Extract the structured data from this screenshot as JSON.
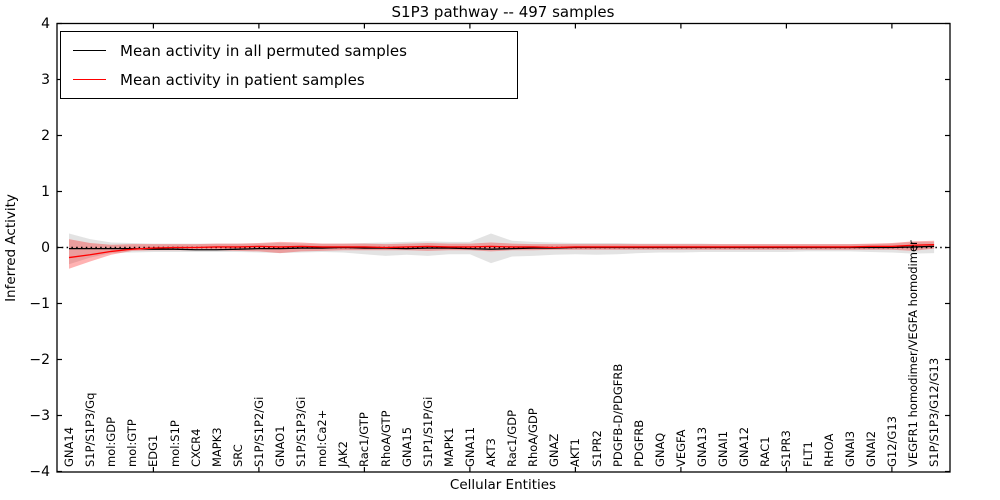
{
  "title": "S1P3 pathway -- 497 samples",
  "axes": {
    "xlabel": "Cellular Entities",
    "ylabel": "Inferred Activity"
  },
  "legend": {
    "items": [
      {
        "label": "Mean activity in all permuted samples",
        "color": "#000000"
      },
      {
        "label": "Mean activity in patient samples",
        "color": "#ff0000"
      }
    ]
  },
  "chart_data": {
    "type": "line",
    "title": "S1P3 pathway -- 497 samples",
    "xlabel": "Cellular Entities",
    "ylabel": "Inferred Activity",
    "ylim": [
      -4,
      4
    ],
    "grid": false,
    "zero_line": true,
    "legend_position": "upper left",
    "yticks": [
      4,
      3,
      2,
      1,
      0,
      -1,
      -2,
      -3,
      -4
    ],
    "ytick_labels": [
      "4",
      "3",
      "2",
      "1",
      "0",
      "−1",
      "−2",
      "−3",
      "−4"
    ],
    "x_major_tick_indices": [
      4,
      9,
      14,
      19,
      24,
      29,
      34,
      39
    ],
    "categories": [
      "GNA14",
      "S1P/S1P3/Gq",
      "mol:GDP",
      "mol:GTP",
      "EDG1",
      "mol:S1P",
      "CXCR4",
      "MAPK3",
      "SRC",
      "S1P/S1P2/Gi",
      "GNAO1",
      "S1P/S1P3/Gi",
      "mol:Ca2+",
      "JAK2",
      "Rac1/GTP",
      "RhoA/GTP",
      "GNA15",
      "S1P1/S1P/Gi",
      "MAPK1",
      "GNA11",
      "AKT3",
      "Rac1/GDP",
      "RhoA/GDP",
      "GNAZ",
      "AKT1",
      "S1PR2",
      "PDGFB-D/PDGFRB",
      "PDGFRB",
      "GNAQ",
      "VEGFA",
      "GNA13",
      "GNAI1",
      "GNA12",
      "RAC1",
      "S1PR3",
      "FLT1",
      "RHOA",
      "GNAI3",
      "GNAI2",
      "G12/G13",
      "VEGFR1 homodimer/VEGFA homodimer",
      "S1P/S1P3/G12/G13"
    ],
    "series": [
      {
        "name": "Mean activity in all permuted samples",
        "color": "#000000",
        "line_width": 1.3,
        "band_color": "#b0b0b0",
        "band_opacity": 0.35,
        "values": [
          -0.02,
          -0.02,
          -0.02,
          -0.02,
          -0.03,
          -0.03,
          -0.04,
          -0.04,
          -0.03,
          -0.02,
          -0.02,
          -0.01,
          -0.01,
          0,
          -0.01,
          -0.01,
          -0.02,
          -0.01,
          -0.01,
          -0.02,
          -0.03,
          -0.02,
          -0.01,
          -0.01,
          0,
          0,
          0,
          0,
          0,
          0,
          0,
          0,
          0,
          0,
          0,
          0,
          0,
          0,
          0,
          0,
          0.01,
          0.02
        ],
        "band_hi": [
          0.25,
          0.15,
          0.09,
          0.08,
          0.07,
          0.07,
          0.07,
          0.07,
          0.07,
          0.07,
          0.08,
          0.07,
          0.07,
          0.07,
          0.08,
          0.09,
          0.1,
          0.11,
          0.1,
          0.1,
          0.25,
          0.12,
          0.1,
          0.09,
          0.08,
          0.08,
          0.08,
          0.07,
          0.07,
          0.07,
          0.07,
          0.06,
          0.06,
          0.06,
          0.06,
          0.06,
          0.06,
          0.06,
          0.06,
          0.07,
          0.1,
          0.1
        ],
        "band_lo": [
          -0.3,
          -0.18,
          -0.1,
          -0.09,
          -0.08,
          -0.08,
          -0.08,
          -0.08,
          -0.08,
          -0.09,
          -0.1,
          -0.09,
          -0.08,
          -0.09,
          -0.12,
          -0.15,
          -0.13,
          -0.15,
          -0.12,
          -0.12,
          -0.28,
          -0.16,
          -0.15,
          -0.13,
          -0.12,
          -0.13,
          -0.12,
          -0.1,
          -0.09,
          -0.09,
          -0.08,
          -0.08,
          -0.08,
          -0.08,
          -0.08,
          -0.07,
          -0.07,
          -0.07,
          -0.08,
          -0.09,
          -0.11,
          -0.1
        ]
      },
      {
        "name": "Mean activity in patient samples",
        "color": "#ff0000",
        "line_width": 1.3,
        "band_color": "#ff0000",
        "band_opacity": 0.3,
        "values": [
          -0.18,
          -0.13,
          -0.07,
          -0.03,
          -0.01,
          0,
          0,
          0.01,
          0.01,
          0.02,
          0.01,
          0.02,
          0.01,
          0.01,
          0.01,
          0,
          0.01,
          0.02,
          0.01,
          0.01,
          0.02,
          0.01,
          0.01,
          0,
          0.01,
          0.01,
          0.01,
          0.01,
          0.01,
          0.01,
          0.01,
          0.01,
          0.01,
          0.01,
          0.01,
          0.01,
          0.01,
          0.01,
          0.02,
          0.02,
          0.04,
          0.05
        ],
        "band_hi": [
          0.15,
          0.08,
          0.05,
          0.06,
          0.06,
          0.06,
          0.06,
          0.07,
          0.07,
          0.08,
          0.1,
          0.09,
          0.07,
          0.07,
          0.07,
          0.06,
          0.07,
          0.08,
          0.07,
          0.07,
          0.09,
          0.07,
          0.06,
          0.06,
          0.06,
          0.06,
          0.06,
          0.06,
          0.06,
          0.06,
          0.06,
          0.06,
          0.06,
          0.06,
          0.06,
          0.06,
          0.06,
          0.06,
          0.07,
          0.08,
          0.11,
          0.12
        ],
        "band_lo": [
          -0.38,
          -0.25,
          -0.13,
          -0.06,
          -0.05,
          -0.05,
          -0.05,
          -0.05,
          -0.06,
          -0.07,
          -0.1,
          -0.07,
          -0.06,
          -0.05,
          -0.05,
          -0.05,
          -0.05,
          -0.06,
          -0.05,
          -0.05,
          -0.07,
          -0.05,
          -0.05,
          -0.04,
          -0.04,
          -0.04,
          -0.04,
          -0.04,
          -0.04,
          -0.04,
          -0.04,
          -0.04,
          -0.04,
          -0.04,
          -0.04,
          -0.04,
          -0.04,
          -0.04,
          -0.04,
          -0.04,
          -0.06,
          -0.02
        ]
      }
    ]
  }
}
